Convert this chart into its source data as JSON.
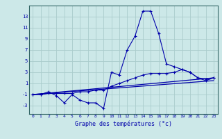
{
  "title": "Graphe des températures (°c)",
  "bg_color": "#cce8e8",
  "grid_color": "#aacccc",
  "line_color": "#0000aa",
  "x_ticks": [
    0,
    1,
    2,
    3,
    4,
    5,
    6,
    7,
    8,
    9,
    10,
    11,
    12,
    13,
    14,
    15,
    16,
    17,
    18,
    19,
    20,
    21,
    22,
    23
  ],
  "y_ticks": [
    -3,
    -1,
    1,
    3,
    5,
    7,
    9,
    11,
    13
  ],
  "xlim": [
    -0.5,
    23.5
  ],
  "ylim": [
    -4.5,
    15
  ],
  "series": [
    {
      "x": [
        0,
        1,
        2,
        3,
        4,
        5,
        6,
        7,
        8,
        9,
        10,
        11,
        12,
        13,
        14,
        15,
        16,
        17,
        18,
        19,
        20,
        21,
        22,
        23
      ],
      "y": [
        -1,
        -1,
        -0.5,
        -1.2,
        -2.5,
        -1,
        -2,
        -2.5,
        -2.5,
        -3.5,
        3,
        2.5,
        7,
        9.5,
        14,
        14,
        10,
        4.5,
        4,
        3.5,
        3,
        2,
        1.5,
        2
      ],
      "marker": true
    },
    {
      "x": [
        0,
        1,
        2,
        3,
        4,
        5,
        6,
        7,
        8,
        9,
        10,
        11,
        12,
        13,
        14,
        15,
        16,
        17,
        18,
        19,
        20,
        21,
        22,
        23
      ],
      "y": [
        -1,
        -1,
        -0.8,
        -0.8,
        -0.8,
        -0.8,
        -0.5,
        -0.5,
        -0.2,
        -0.2,
        0.5,
        1,
        1.5,
        2,
        2.5,
        2.8,
        2.8,
        2.8,
        3,
        3.5,
        3,
        2,
        1.8,
        2
      ],
      "marker": true
    },
    {
      "x": [
        0,
        23
      ],
      "y": [
        -1,
        2
      ],
      "marker": false
    },
    {
      "x": [
        0,
        23
      ],
      "y": [
        -1,
        1.5
      ],
      "marker": false
    }
  ]
}
